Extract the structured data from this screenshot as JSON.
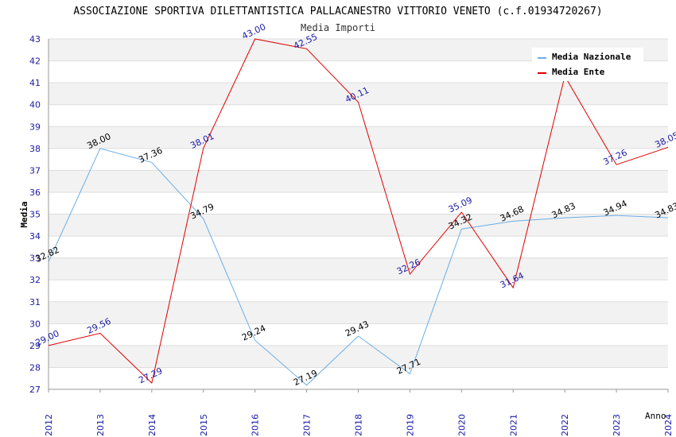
{
  "chart_data": {
    "type": "line",
    "title": "ASSOCIAZIONE SPORTIVA DILETTANTISTICA PALLACANESTRO VITTORIO VENETO (c.f.01934720267)",
    "subtitle": "Media Importi",
    "xlabel": "Anno",
    "ylabel": "Media",
    "ylim": [
      27,
      43
    ],
    "yticks": [
      "27",
      "28",
      "29",
      "30",
      "31",
      "32",
      "33",
      "34",
      "35",
      "36",
      "37",
      "38",
      "39",
      "40",
      "41",
      "42",
      "43"
    ],
    "categories": [
      "2012",
      "2013",
      "2014",
      "2015",
      "2016",
      "2017",
      "2018",
      "2019",
      "2020",
      "2021",
      "2022",
      "2023",
      "2024"
    ],
    "series": [
      {
        "name": "Media Nazionale",
        "color": "#6aaee6",
        "values": [
          32.82,
          38.0,
          37.36,
          34.79,
          29.24,
          27.19,
          29.43,
          27.71,
          34.32,
          34.68,
          34.83,
          34.94,
          34.83
        ],
        "labels": [
          "32.82",
          "38.00",
          "37.36",
          "34.79",
          "29.24",
          "27.19",
          "29.43",
          "27.71",
          "34.32",
          "34.68",
          "34.83",
          "34.94",
          "34.83"
        ]
      },
      {
        "name": "Media Ente",
        "color": "#e00000",
        "values": [
          29.0,
          29.56,
          27.29,
          38.01,
          43.0,
          42.55,
          40.11,
          32.26,
          35.09,
          31.64,
          41.3,
          37.26,
          38.05
        ],
        "labels": [
          "29.00",
          "29.56",
          "27.29",
          "38.01",
          "43.00",
          "42.55",
          "40.11",
          "32.26",
          "35.09",
          "31.64",
          "",
          "37.26",
          "38.05"
        ]
      }
    ],
    "grid": true,
    "legend_position": "top-right"
  }
}
